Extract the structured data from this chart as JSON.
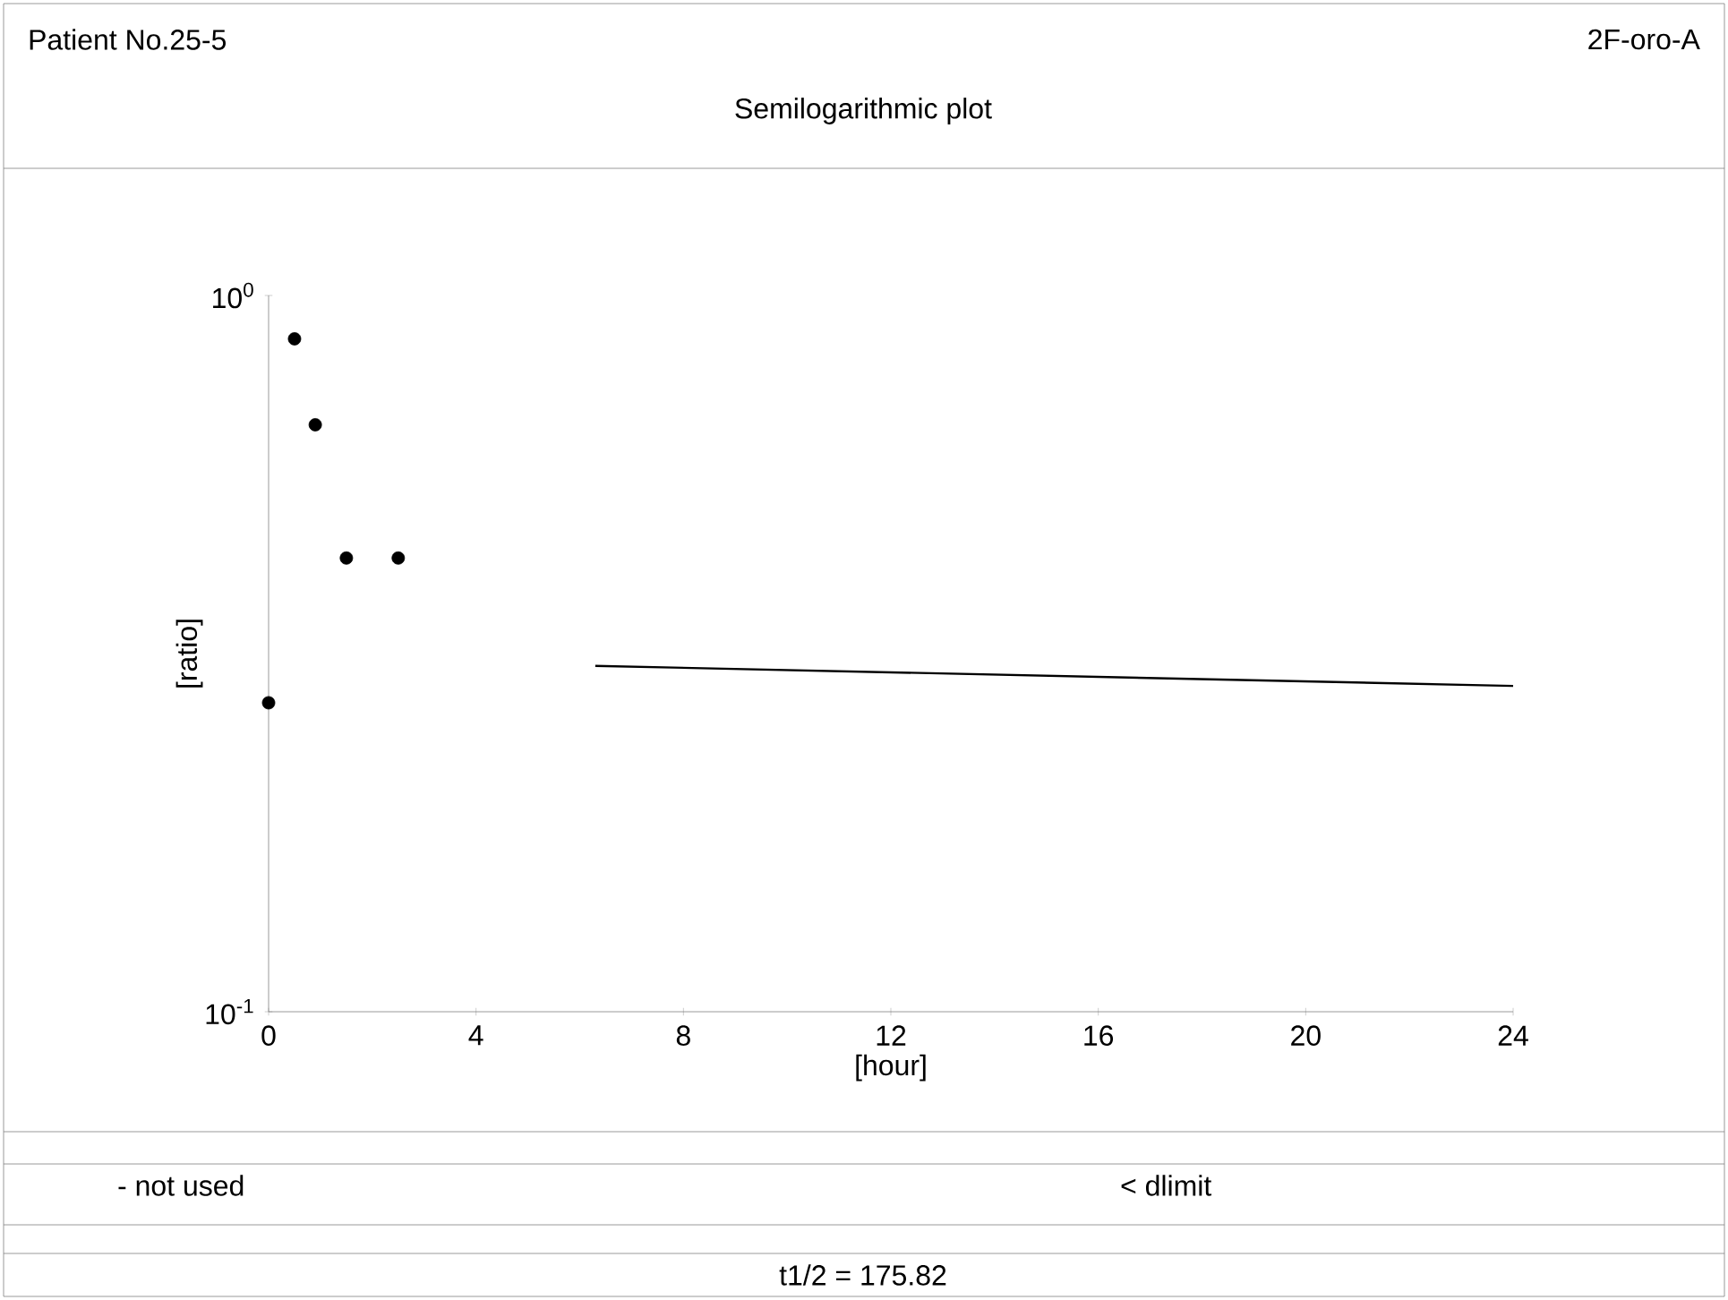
{
  "chart_data": {
    "type": "scatter",
    "title": "Semilogarithmic plot",
    "subtitle": "Patient No.25-5",
    "xlabel": "[hour]",
    "ylabel": "[ratio]",
    "annotations": [
      "2F-oro-A",
      "- not used",
      "< dlimit",
      "t1/2 = 175.82"
    ],
    "log": "y",
    "xlim": [
      0,
      24
    ],
    "ylim": [
      0.1,
      1
    ],
    "xticks": [
      0,
      4,
      8,
      12,
      16,
      20,
      24
    ],
    "yticks": [
      {
        "value": 0.1,
        "label": "10$^{-1}$"
      },
      {
        "value": 1,
        "label": "10$^{0}$"
      }
    ],
    "series": [
      {
        "marker": "circle",
        "color": "#000000",
        "x": [
          0.5,
          0.9,
          1.5,
          2.5,
          0
        ],
        "values": [
          0.87,
          0.66,
          0.43,
          0.43,
          0.27
        ]
      },
      {
        "type": "line",
        "color": "#000000",
        "line_style": "solid",
        "marker": "none",
        "x": [
          6.3,
          24
        ],
        "values": [
          0.304,
          0.285
        ]
      }
    ]
  }
}
